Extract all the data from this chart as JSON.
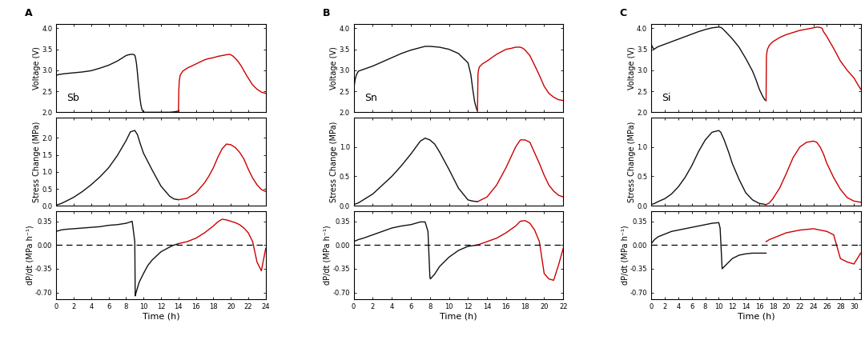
{
  "panels": [
    "A",
    "B",
    "C"
  ],
  "labels": [
    "Sb",
    "Sn",
    "Si"
  ],
  "xlabel": "Time (h)",
  "ylabel_voltage": "Voltage (V)",
  "ylabel_stress": "Stress Change (MPa)",
  "ylabel_dpdt": "dP/dt (MPa h⁻¹)",
  "color_black": "#111111",
  "color_red": "#cc0000",
  "background": "#ffffff",
  "A": {
    "xlim": [
      0,
      24
    ],
    "xticks": [
      0,
      2,
      4,
      6,
      8,
      10,
      12,
      14,
      16,
      18,
      20,
      22,
      24
    ],
    "voltage_black_t": [
      0,
      0.3,
      1,
      2,
      3,
      4,
      5,
      6,
      7,
      8,
      8.3,
      8.6,
      8.8,
      9.0,
      9.1,
      9.2,
      9.3,
      9.4,
      9.5,
      9.6,
      9.7,
      9.8,
      9.9,
      10,
      10.1,
      10.2,
      10.4,
      10.8,
      11.5,
      12,
      13,
      13.5,
      13.8,
      14.0
    ],
    "voltage_black_v": [
      2.88,
      2.9,
      2.92,
      2.94,
      2.96,
      2.99,
      3.05,
      3.12,
      3.22,
      3.35,
      3.37,
      3.38,
      3.38,
      3.36,
      3.28,
      3.15,
      2.95,
      2.72,
      2.52,
      2.32,
      2.18,
      2.08,
      2.03,
      2.01,
      2.0,
      2.0,
      2.0,
      2.0,
      2.0,
      2.0,
      2.0,
      2.01,
      2.02,
      2.03
    ],
    "voltage_red_t": [
      14.0,
      14.05,
      14.1,
      14.2,
      14.5,
      15,
      15.5,
      16,
      16.5,
      17,
      17.5,
      18,
      18.5,
      19,
      19.5,
      19.8,
      20.0,
      20.3,
      20.8,
      21.2,
      21.8,
      22.5,
      23,
      23.5,
      24
    ],
    "voltage_red_v": [
      2.03,
      2.55,
      2.75,
      2.88,
      2.98,
      3.05,
      3.1,
      3.15,
      3.2,
      3.25,
      3.28,
      3.3,
      3.33,
      3.35,
      3.37,
      3.38,
      3.37,
      3.33,
      3.22,
      3.1,
      2.88,
      2.65,
      2.55,
      2.48,
      2.45
    ],
    "stress_black_t": [
      0,
      0.5,
      1,
      2,
      3,
      4,
      5,
      6,
      7,
      8,
      8.5,
      9,
      9.3,
      9.6,
      10,
      11,
      12,
      13,
      13.5,
      14.0
    ],
    "stress_black_s": [
      0.02,
      0.06,
      0.12,
      0.25,
      0.42,
      0.62,
      0.85,
      1.12,
      1.48,
      1.92,
      2.18,
      2.22,
      2.1,
      1.85,
      1.55,
      1.05,
      0.58,
      0.28,
      0.2,
      0.18
    ],
    "stress_red_t": [
      14.0,
      15,
      16,
      17,
      17.5,
      18,
      18.5,
      19,
      19.5,
      20,
      20.5,
      21,
      21.5,
      22,
      22.5,
      23,
      23.5,
      24
    ],
    "stress_red_s": [
      0.18,
      0.22,
      0.38,
      0.68,
      0.88,
      1.12,
      1.42,
      1.68,
      1.82,
      1.8,
      1.72,
      1.58,
      1.38,
      1.08,
      0.82,
      0.62,
      0.48,
      0.42
    ],
    "dpdt_black_t": [
      0,
      0.5,
      1,
      2,
      3,
      4,
      5,
      6,
      7,
      8,
      8.5,
      8.7,
      9.0,
      9.05,
      9.15,
      9.5,
      10,
      10.5,
      11,
      12,
      13,
      13.5,
      13.8,
      14.0
    ],
    "dpdt_black_d": [
      0.2,
      0.22,
      0.23,
      0.24,
      0.25,
      0.26,
      0.27,
      0.29,
      0.3,
      0.32,
      0.34,
      0.35,
      0.05,
      -0.75,
      -0.7,
      -0.55,
      -0.42,
      -0.3,
      -0.22,
      -0.1,
      -0.03,
      0.0,
      0.01,
      0.02
    ],
    "dpdt_red_t": [
      14.0,
      15,
      16,
      17,
      18,
      18.5,
      19,
      19.5,
      20,
      20.5,
      21,
      21.5,
      22,
      22.5,
      23,
      23.5,
      24
    ],
    "dpdt_red_d": [
      0.02,
      0.05,
      0.1,
      0.18,
      0.28,
      0.34,
      0.38,
      0.37,
      0.35,
      0.33,
      0.3,
      0.25,
      0.18,
      0.05,
      -0.25,
      -0.38,
      -0.05
    ],
    "voltage_ylim": [
      2.0,
      4.1
    ],
    "voltage_yticks": [
      2.0,
      2.5,
      3.0,
      3.5,
      4.0
    ],
    "stress_ylim": [
      0.0,
      2.6
    ],
    "stress_yticks": [
      0.0,
      0.5,
      1.0,
      1.5,
      2.0
    ],
    "dpdt_ylim": [
      -0.8,
      0.5
    ],
    "dpdt_yticks": [
      -0.7,
      -0.35,
      0.0,
      0.35
    ]
  },
  "B": {
    "xlim": [
      0,
      22
    ],
    "xticks": [
      0,
      2,
      4,
      6,
      8,
      10,
      12,
      14,
      16,
      18,
      20,
      22
    ],
    "voltage_black_t": [
      0,
      0.15,
      0.3,
      0.5,
      1,
      2,
      3,
      4,
      5,
      6,
      7,
      7.5,
      8,
      9,
      10,
      11,
      12,
      12.3,
      12.5,
      12.7,
      12.9,
      13.0
    ],
    "voltage_black_v": [
      2.55,
      2.78,
      2.9,
      2.98,
      3.02,
      3.1,
      3.2,
      3.3,
      3.4,
      3.48,
      3.54,
      3.57,
      3.57,
      3.55,
      3.5,
      3.4,
      3.18,
      2.9,
      2.55,
      2.25,
      2.08,
      2.03
    ],
    "voltage_red_t": [
      13.0,
      13.05,
      13.1,
      13.2,
      13.5,
      14,
      14.5,
      15,
      15.5,
      16,
      16.5,
      17,
      17.5,
      17.8,
      18,
      18.5,
      19,
      19.5,
      20,
      20.5,
      21,
      21.5,
      22
    ],
    "voltage_red_v": [
      2.03,
      2.9,
      3.0,
      3.08,
      3.15,
      3.22,
      3.3,
      3.38,
      3.44,
      3.5,
      3.52,
      3.55,
      3.55,
      3.52,
      3.48,
      3.35,
      3.12,
      2.88,
      2.62,
      2.45,
      2.36,
      2.3,
      2.28
    ],
    "stress_black_t": [
      0,
      0.5,
      1,
      2,
      3,
      4,
      5,
      6,
      7,
      7.5,
      8,
      8.5,
      9,
      10,
      11,
      12,
      12.5,
      13.0
    ],
    "stress_black_s": [
      0.02,
      0.05,
      0.1,
      0.2,
      0.35,
      0.5,
      0.68,
      0.88,
      1.1,
      1.15,
      1.12,
      1.05,
      0.92,
      0.62,
      0.3,
      0.1,
      0.08,
      0.07
    ],
    "stress_red_t": [
      13.0,
      14,
      15,
      16,
      17,
      17.5,
      18,
      18.5,
      19,
      19.5,
      20,
      20.5,
      21,
      21.5,
      22
    ],
    "stress_red_s": [
      0.07,
      0.15,
      0.35,
      0.65,
      1.0,
      1.12,
      1.12,
      1.08,
      0.9,
      0.72,
      0.52,
      0.35,
      0.25,
      0.18,
      0.15
    ],
    "dpdt_black_t": [
      0,
      0.5,
      1,
      2,
      3,
      4,
      5,
      6,
      7,
      7.5,
      7.8,
      8.0,
      8.05,
      8.5,
      9,
      9.5,
      10,
      11,
      12,
      13.0
    ],
    "dpdt_black_d": [
      0.05,
      0.08,
      0.1,
      0.15,
      0.2,
      0.25,
      0.28,
      0.3,
      0.34,
      0.34,
      0.2,
      -0.47,
      -0.5,
      -0.43,
      -0.32,
      -0.25,
      -0.18,
      -0.08,
      -0.02,
      0.0
    ],
    "dpdt_red_t": [
      13.0,
      14,
      15,
      16,
      17,
      17.5,
      18,
      18.5,
      19,
      19.5,
      20,
      20.5,
      21,
      21.5,
      22
    ],
    "dpdt_red_d": [
      0.0,
      0.05,
      0.1,
      0.18,
      0.28,
      0.35,
      0.36,
      0.32,
      0.22,
      0.05,
      -0.42,
      -0.5,
      -0.52,
      -0.3,
      -0.05
    ],
    "voltage_ylim": [
      2.0,
      4.1
    ],
    "voltage_yticks": [
      2.0,
      2.5,
      3.0,
      3.5,
      4.0
    ],
    "stress_ylim": [
      0.0,
      1.5
    ],
    "stress_yticks": [
      0.0,
      0.5,
      1.0
    ],
    "dpdt_ylim": [
      -0.8,
      0.5
    ],
    "dpdt_yticks": [
      -0.7,
      -0.35,
      0.0,
      0.35
    ]
  },
  "C": {
    "xlim": [
      0,
      31
    ],
    "xticks": [
      0,
      2,
      4,
      6,
      8,
      10,
      12,
      14,
      16,
      18,
      20,
      22,
      24,
      26,
      28,
      30
    ],
    "voltage_black_t": [
      0,
      0.2,
      0.4,
      0.6,
      1,
      2,
      3,
      4,
      5,
      6,
      7,
      8,
      9,
      10,
      10.3,
      10.5,
      11,
      12,
      13,
      14,
      15,
      15.5,
      16,
      16.5,
      16.8,
      17.0
    ],
    "voltage_black_v": [
      3.62,
      3.55,
      3.5,
      3.52,
      3.56,
      3.62,
      3.68,
      3.74,
      3.8,
      3.86,
      3.92,
      3.97,
      4.01,
      4.03,
      4.02,
      4.0,
      3.92,
      3.75,
      3.55,
      3.28,
      2.98,
      2.78,
      2.55,
      2.38,
      2.3,
      2.28
    ],
    "voltage_red_t": [
      17.0,
      17.05,
      17.1,
      17.2,
      17.5,
      18,
      19,
      20,
      21,
      22,
      23,
      24,
      24.5,
      25,
      25.3,
      25.5,
      26,
      27,
      28,
      29,
      30,
      30.5,
      31
    ],
    "voltage_red_v": [
      2.28,
      3.32,
      3.4,
      3.5,
      3.6,
      3.68,
      3.78,
      3.85,
      3.9,
      3.95,
      3.98,
      4.01,
      4.03,
      4.02,
      4.0,
      3.92,
      3.8,
      3.52,
      3.22,
      3.0,
      2.82,
      2.68,
      2.55
    ],
    "stress_black_t": [
      0,
      0.5,
      1,
      2,
      3,
      4,
      5,
      6,
      7,
      8,
      9,
      10,
      10.3,
      10.8,
      11.5,
      12,
      13,
      14,
      15,
      16,
      16.5,
      17.0
    ],
    "stress_black_s": [
      0.02,
      0.04,
      0.07,
      0.12,
      0.2,
      0.32,
      0.48,
      0.68,
      0.92,
      1.12,
      1.25,
      1.28,
      1.25,
      1.12,
      0.9,
      0.72,
      0.45,
      0.22,
      0.1,
      0.04,
      0.03,
      0.02
    ],
    "stress_red_t": [
      17.0,
      17.5,
      18,
      19,
      20,
      21,
      22,
      23,
      24,
      24.5,
      25,
      25.5,
      26,
      27,
      28,
      29,
      30,
      31
    ],
    "stress_red_s": [
      0.02,
      0.05,
      0.12,
      0.3,
      0.55,
      0.82,
      1.0,
      1.08,
      1.1,
      1.08,
      1.0,
      0.88,
      0.72,
      0.48,
      0.28,
      0.14,
      0.08,
      0.06
    ],
    "dpdt_black_t": [
      0,
      0.5,
      1,
      2,
      3,
      4,
      5,
      6,
      7,
      8,
      9,
      10,
      10.2,
      10.5,
      11,
      12,
      13,
      14,
      15,
      16,
      17.0
    ],
    "dpdt_black_d": [
      0.02,
      0.08,
      0.12,
      0.16,
      0.2,
      0.22,
      0.24,
      0.26,
      0.28,
      0.3,
      0.32,
      0.33,
      0.25,
      -0.35,
      -0.3,
      -0.2,
      -0.15,
      -0.13,
      -0.12,
      -0.12,
      -0.12
    ],
    "dpdt_red_t": [
      17.0,
      17.5,
      18,
      19,
      20,
      21,
      22,
      23,
      24,
      25,
      26,
      27,
      28,
      29,
      30,
      31
    ],
    "dpdt_red_d": [
      0.05,
      0.08,
      0.1,
      0.14,
      0.18,
      0.2,
      0.22,
      0.23,
      0.24,
      0.22,
      0.2,
      0.15,
      -0.2,
      -0.25,
      -0.28,
      -0.12
    ],
    "voltage_ylim": [
      2.0,
      4.1
    ],
    "voltage_yticks": [
      2.0,
      2.5,
      3.0,
      3.5,
      4.0
    ],
    "stress_ylim": [
      0.0,
      1.5
    ],
    "stress_yticks": [
      0.0,
      0.5,
      1.0
    ],
    "dpdt_ylim": [
      -0.8,
      0.5
    ],
    "dpdt_yticks": [
      -0.7,
      -0.35,
      0.0,
      0.35
    ]
  }
}
